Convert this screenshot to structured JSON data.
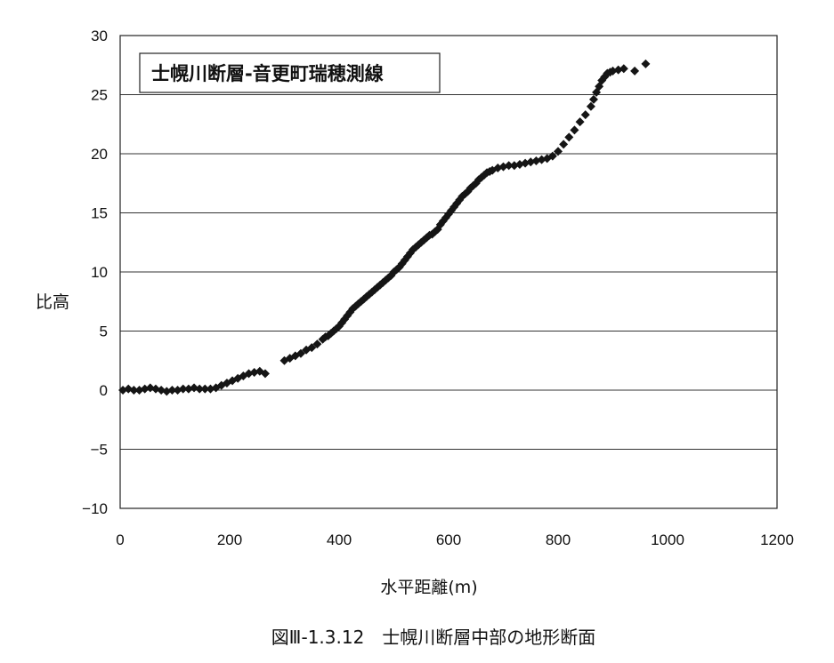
{
  "chart_data": {
    "type": "scatter",
    "title": "士幌川断層-音更町瑞穂測線",
    "xlabel": "水平距離(m)",
    "ylabel": "比高",
    "xlim": [
      0,
      1200
    ],
    "ylim": [
      -10,
      30
    ],
    "x_ticks": [
      0,
      200,
      400,
      600,
      800,
      1000,
      1200
    ],
    "y_ticks": [
      -10,
      -5,
      0,
      5,
      10,
      15,
      20,
      25,
      30
    ],
    "y_tick_labels": [
      "−10",
      "−5",
      "0",
      "5",
      "10",
      "15",
      "20",
      "25",
      "30"
    ],
    "grid": "horizontal",
    "marker": "diamond",
    "marker_color": "#151515",
    "series": [
      {
        "x": [
          5,
          15,
          25,
          35,
          45,
          55,
          65,
          75,
          85,
          95,
          105,
          115,
          125,
          135,
          145,
          155,
          165,
          175,
          185,
          195,
          205,
          215,
          225,
          235,
          245,
          255,
          265,
          300,
          310,
          320,
          330,
          340,
          350,
          360,
          370,
          375,
          380,
          385,
          390,
          395,
          400,
          405,
          410,
          415,
          420,
          425,
          430,
          435,
          440,
          445,
          450,
          455,
          460,
          465,
          470,
          475,
          480,
          485,
          490,
          495,
          500,
          505,
          510,
          515,
          520,
          525,
          530,
          535,
          540,
          545,
          550,
          555,
          560,
          565,
          570,
          575,
          580,
          585,
          590,
          595,
          600,
          605,
          610,
          615,
          620,
          625,
          630,
          635,
          640,
          645,
          650,
          655,
          660,
          665,
          670,
          675,
          680,
          690,
          700,
          710,
          720,
          730,
          740,
          750,
          760,
          770,
          780,
          790,
          800,
          810,
          820,
          830,
          840,
          850,
          860,
          865,
          870,
          875,
          880,
          885,
          890,
          895,
          900,
          910,
          920,
          940,
          960
        ],
        "y": [
          0.0,
          0.1,
          0.0,
          0.0,
          0.1,
          0.2,
          0.1,
          0.0,
          -0.1,
          0.0,
          0.0,
          0.1,
          0.1,
          0.2,
          0.1,
          0.1,
          0.1,
          0.2,
          0.4,
          0.6,
          0.8,
          1.0,
          1.2,
          1.4,
          1.5,
          1.6,
          1.4,
          2.5,
          2.7,
          2.9,
          3.1,
          3.4,
          3.6,
          3.9,
          4.3,
          4.5,
          4.6,
          4.8,
          5.0,
          5.2,
          5.4,
          5.7,
          6.0,
          6.3,
          6.6,
          6.9,
          7.1,
          7.3,
          7.5,
          7.7,
          7.9,
          8.1,
          8.3,
          8.5,
          8.7,
          8.9,
          9.1,
          9.3,
          9.5,
          9.7,
          10.0,
          10.2,
          10.4,
          10.7,
          11.0,
          11.3,
          11.6,
          11.9,
          12.1,
          12.3,
          12.5,
          12.7,
          12.9,
          13.1,
          13.2,
          13.4,
          13.6,
          14.0,
          14.3,
          14.6,
          14.9,
          15.2,
          15.5,
          15.8,
          16.1,
          16.4,
          16.6,
          16.8,
          17.1,
          17.3,
          17.5,
          17.8,
          18.0,
          18.2,
          18.4,
          18.5,
          18.6,
          18.8,
          18.9,
          19.0,
          19.0,
          19.1,
          19.2,
          19.3,
          19.4,
          19.5,
          19.6,
          19.8,
          20.2,
          20.8,
          21.4,
          22.0,
          22.7,
          23.3,
          24.0,
          24.6,
          25.2,
          25.7,
          26.2,
          26.5,
          26.8,
          26.9,
          27.0,
          27.1,
          27.2,
          27.0,
          27.6
        ]
      }
    ]
  },
  "caption": "図Ⅲ-1.3.12　士幌川断層中部の地形断面"
}
